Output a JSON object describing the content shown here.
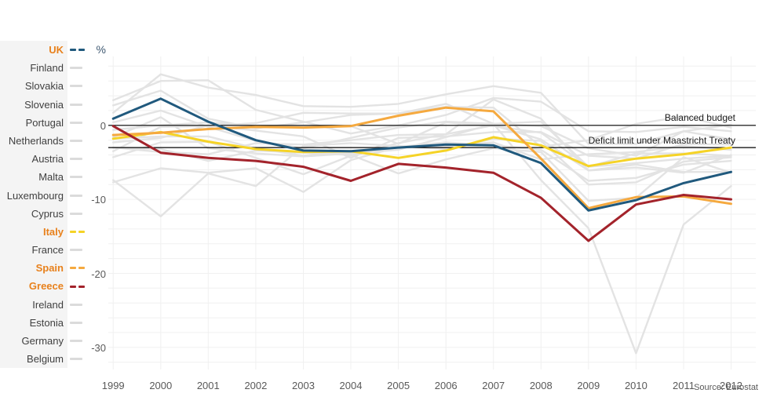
{
  "ui": {
    "percent_label": "%",
    "balanced_budget_label": "Balanced budget",
    "deficit_limit_label": "Deficit limit under Maastricht Treaty",
    "source": "Source: Eurostat",
    "ytick_labels": [
      "0",
      "-10",
      "-20",
      "-30"
    ]
  },
  "colors": {
    "uk_blue": "#20597D",
    "italy_yellow": "#F5D327",
    "spain_orange": "#F5A93F",
    "greece_red": "#A3232B",
    "highlight_label_orange": "#E8811C",
    "legend_label": "#3F3F3F",
    "legend_bg": "#F4F4F4",
    "tick_text": "#595959",
    "gridline": "#F0F0F0",
    "gray_series": "#E3E3E3",
    "gray_swatch": "#DBDBDB",
    "reference_line": "#000000"
  },
  "chart_data": {
    "type": "line",
    "title": "",
    "xlabel": "",
    "ylabel": "%",
    "x": [
      1999,
      2000,
      2001,
      2002,
      2003,
      2004,
      2005,
      2006,
      2007,
      2008,
      2009,
      2010,
      2011,
      2012
    ],
    "yticks": [
      0,
      -10,
      -20,
      -30
    ],
    "ylim": [
      -33,
      9.4
    ],
    "grid": "horizontal every 2 units, vertical every year",
    "legend_position": "left",
    "source": "Source: Eurostat",
    "ref_lines": [
      {
        "y": 0,
        "label": "Balanced budget"
      },
      {
        "y": -3,
        "label": "Deficit limit under Maastricht Treaty"
      }
    ],
    "series": [
      {
        "name": "UK",
        "highlight": true,
        "color": "#20597D",
        "values": [
          0.9,
          3.6,
          0.5,
          -2.0,
          -3.4,
          -3.5,
          -3.0,
          -2.6,
          -2.7,
          -5.1,
          -11.5,
          -10.1,
          -7.8,
          -6.3
        ]
      },
      {
        "name": "Finland",
        "highlight": false,
        "color": null,
        "values": [
          1.7,
          6.9,
          5.1,
          4.1,
          2.6,
          2.5,
          2.9,
          4.2,
          5.3,
          4.4,
          -2.5,
          -2.5,
          -0.8,
          -1.9
        ]
      },
      {
        "name": "Slovakia",
        "highlight": false,
        "color": null,
        "values": [
          -7.4,
          -12.3,
          -6.5,
          -8.2,
          -2.8,
          -2.4,
          -2.8,
          -3.2,
          -1.8,
          -2.1,
          -8.0,
          -7.7,
          -4.9,
          -4.3
        ]
      },
      {
        "name": "Slovenia",
        "highlight": false,
        "color": null,
        "values": [
          -3.0,
          -3.6,
          -3.9,
          -2.4,
          -2.6,
          -2.0,
          -1.3,
          -1.2,
          0.0,
          -1.9,
          -6.1,
          -5.7,
          -6.4,
          -4.0
        ]
      },
      {
        "name": "Portugal",
        "highlight": false,
        "color": null,
        "values": [
          -3.0,
          -3.2,
          -4.8,
          -3.4,
          -3.7,
          -4.0,
          -6.5,
          -4.6,
          -3.1,
          -3.6,
          -10.2,
          -9.8,
          -4.3,
          -6.4
        ]
      },
      {
        "name": "Netherlands",
        "highlight": false,
        "color": null,
        "values": [
          0.4,
          2.0,
          -0.2,
          -2.1,
          -3.1,
          -1.7,
          -0.3,
          0.5,
          0.2,
          0.5,
          -5.6,
          -5.1,
          -4.5,
          -4.1
        ]
      },
      {
        "name": "Austria",
        "highlight": false,
        "color": null,
        "values": [
          -2.3,
          -1.7,
          0.0,
          -0.7,
          -1.5,
          -4.4,
          -1.7,
          -1.5,
          -0.9,
          -0.9,
          -4.1,
          -4.5,
          -2.5,
          -2.6
        ]
      },
      {
        "name": "Malta",
        "highlight": false,
        "color": null,
        "values": [
          -7.7,
          -5.8,
          -6.4,
          -5.8,
          -9.0,
          -4.7,
          -2.9,
          -2.8,
          -2.3,
          -4.6,
          -3.9,
          -3.6,
          -2.8,
          -3.3
        ]
      },
      {
        "name": "Luxembourg",
        "highlight": false,
        "color": null,
        "values": [
          3.4,
          6.0,
          6.1,
          2.1,
          0.5,
          -1.1,
          0.0,
          1.4,
          3.7,
          3.2,
          -0.8,
          -0.9,
          -0.2,
          -0.8
        ]
      },
      {
        "name": "Cyprus",
        "highlight": false,
        "color": null,
        "values": [
          -4.3,
          -2.3,
          -2.2,
          -4.4,
          -6.6,
          -4.1,
          -2.4,
          -1.2,
          3.5,
          0.9,
          -6.1,
          -5.3,
          -6.3,
          -6.3
        ]
      },
      {
        "name": "Italy",
        "highlight": true,
        "color": "#F5D327",
        "values": [
          -1.8,
          -0.9,
          -2.2,
          -3.2,
          -3.6,
          -3.5,
          -4.4,
          -3.4,
          -1.6,
          -2.7,
          -5.5,
          -4.5,
          -3.9,
          -3.0
        ]
      },
      {
        "name": "France",
        "highlight": false,
        "color": null,
        "values": [
          -1.8,
          -1.5,
          -1.5,
          -3.1,
          -4.1,
          -3.6,
          -2.9,
          -2.3,
          -2.7,
          -3.3,
          -7.5,
          -7.1,
          -5.3,
          -4.8
        ]
      },
      {
        "name": "Spain",
        "highlight": true,
        "color": "#F5A93F",
        "values": [
          -1.3,
          -1.0,
          -0.5,
          -0.2,
          -0.3,
          -0.1,
          1.3,
          2.4,
          1.9,
          -4.5,
          -11.2,
          -9.7,
          -9.6,
          -10.6
        ]
      },
      {
        "name": "Greece",
        "highlight": true,
        "color": "#A3232B",
        "values": [
          -0.1,
          -3.7,
          -4.4,
          -4.8,
          -5.6,
          -7.5,
          -5.2,
          -5.7,
          -6.4,
          -9.8,
          -15.6,
          -10.7,
          -9.4,
          -10.0
        ]
      },
      {
        "name": "Ireland",
        "highlight": false,
        "color": null,
        "values": [
          2.7,
          4.7,
          0.9,
          -0.4,
          0.4,
          1.4,
          1.6,
          2.9,
          0.2,
          -7.4,
          -13.9,
          -30.8,
          -13.4,
          -8.2
        ]
      },
      {
        "name": "Estonia",
        "highlight": false,
        "color": null,
        "values": [
          -3.5,
          -0.2,
          -0.1,
          0.3,
          1.7,
          1.6,
          1.6,
          2.5,
          2.4,
          -2.9,
          -2.0,
          0.2,
          1.2,
          -0.3
        ]
      },
      {
        "name": "Germany",
        "highlight": false,
        "color": null,
        "values": [
          -1.6,
          1.1,
          -3.1,
          -3.8,
          -4.2,
          -3.8,
          -3.3,
          -1.6,
          0.2,
          -0.1,
          -3.1,
          -4.1,
          -0.8,
          0.1
        ]
      },
      {
        "name": "Belgium",
        "highlight": false,
        "color": null,
        "values": [
          -0.6,
          0.0,
          0.4,
          -0.1,
          -0.1,
          -0.1,
          -2.5,
          0.4,
          -0.1,
          -1.0,
          -5.6,
          -3.8,
          -3.8,
          -4.1
        ]
      }
    ]
  }
}
